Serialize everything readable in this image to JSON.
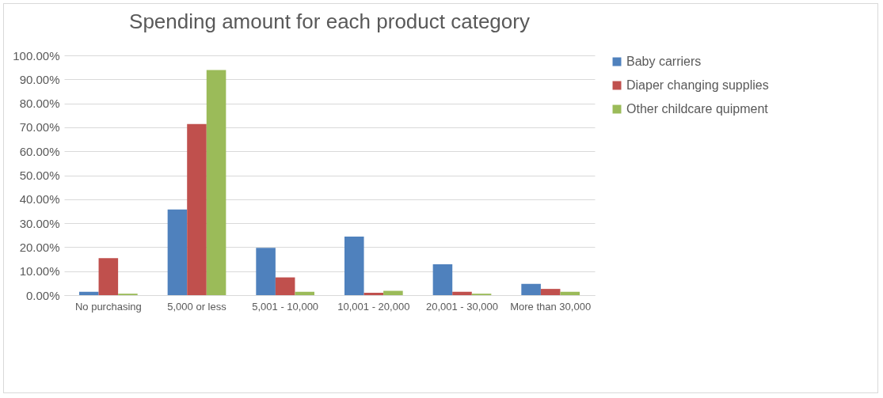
{
  "chart_data": {
    "type": "bar",
    "title": "Spending amount for each product category",
    "categories": [
      "No purchasing",
      "5,000 or less",
      "5,001 - 10,000",
      "10,001 - 20,000",
      "20,001 - 30,000",
      "More than 30,000"
    ],
    "series": [
      {
        "name": "Baby carriers",
        "color": "#4f81bd",
        "values": [
          1.4,
          35.7,
          19.7,
          24.4,
          12.9,
          4.7
        ]
      },
      {
        "name": "Diaper changing supplies",
        "color": "#c0504d",
        "values": [
          15.4,
          71.4,
          7.4,
          1.0,
          1.4,
          2.6
        ]
      },
      {
        "name": "Other childcare quipment",
        "color": "#9bbb59",
        "values": [
          0.6,
          93.9,
          1.4,
          1.8,
          0.6,
          1.4
        ]
      }
    ],
    "ylim": [
      0,
      100
    ],
    "yticks": [
      {
        "value": 0,
        "label": "0.00%"
      },
      {
        "value": 10,
        "label": "10.00%"
      },
      {
        "value": 20,
        "label": "20.00%"
      },
      {
        "value": 30,
        "label": "30.00%"
      },
      {
        "value": 40,
        "label": "40.00%"
      },
      {
        "value": 50,
        "label": "50.00%"
      },
      {
        "value": 60,
        "label": "60.00%"
      },
      {
        "value": 70,
        "label": "70.00%"
      },
      {
        "value": 80,
        "label": "80.00%"
      },
      {
        "value": 90,
        "label": "90.00%"
      },
      {
        "value": 100,
        "label": "100.00%"
      }
    ],
    "grid": "y",
    "legend": "right"
  }
}
